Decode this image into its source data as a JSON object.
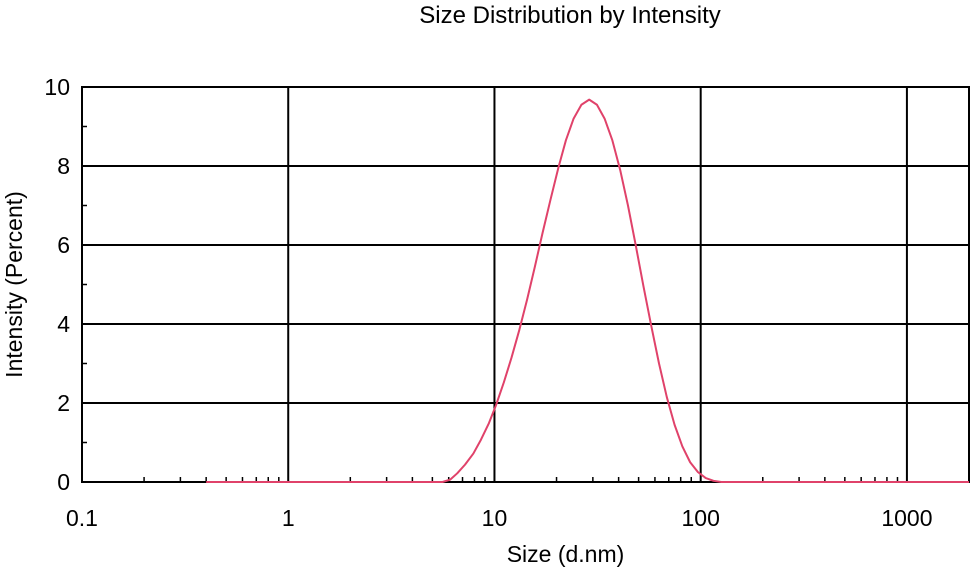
{
  "chart_data": {
    "type": "line",
    "title": "Size Distribution by Intensity",
    "xlabel": "Size (d.nm)",
    "ylabel": "Intensity (Percent)",
    "x_scale": "log",
    "xlim": [
      0.1,
      2000
    ],
    "ylim": [
      0,
      10
    ],
    "x_ticks": [
      0.1,
      1,
      10,
      100,
      1000
    ],
    "x_tick_labels": [
      "0.1",
      "1",
      "10",
      "100",
      "1000"
    ],
    "y_ticks": [
      0,
      2,
      4,
      6,
      8,
      10
    ],
    "y_tick_labels": [
      "0",
      "2",
      "4",
      "6",
      "8",
      "10"
    ],
    "grid": true,
    "series_color": "#e0426a",
    "series": [
      {
        "x": [
          0.4,
          1,
          2,
          4,
          5.6,
          6.1,
          6.6,
          7.2,
          7.9,
          8.6,
          9.4,
          10.2,
          11.1,
          12.1,
          13.2,
          14.4,
          15.7,
          17.1,
          18.7,
          20.4,
          22.2,
          24.2,
          26.4,
          28.8,
          31.4,
          34.2,
          37.3,
          40.7,
          44.4,
          48.4,
          52.8,
          57.6,
          62.8,
          68.5,
          74.7,
          81.5,
          88.9,
          97,
          105.8,
          115.4,
          125.9,
          137.3,
          149.7,
          200,
          500,
          1000,
          2000
        ],
        "y": [
          0,
          0,
          0,
          0,
          0,
          0.06,
          0.22,
          0.44,
          0.72,
          1.07,
          1.49,
          1.96,
          2.52,
          3.15,
          3.85,
          4.62,
          5.45,
          6.3,
          7.15,
          7.95,
          8.65,
          9.2,
          9.55,
          9.68,
          9.55,
          9.2,
          8.65,
          7.9,
          7.0,
          6.0,
          4.95,
          3.95,
          3.0,
          2.15,
          1.45,
          0.9,
          0.5,
          0.25,
          0.1,
          0.03,
          0,
          0,
          0,
          0,
          0,
          0,
          0
        ]
      }
    ]
  }
}
